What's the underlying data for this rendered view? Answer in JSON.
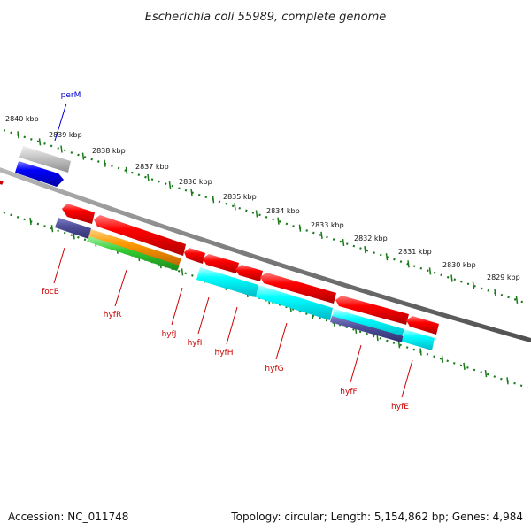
{
  "title": "Escherichia coli 55989, complete genome",
  "footer": {
    "accession": "Accession: NC_011748",
    "summary": "Topology: circular; Length: 5,154,862 bp; Genes: 4,984"
  },
  "scale_labels": [
    "2840 kbp",
    "2839 kbp",
    "2838 kbp",
    "2837 kbp",
    "2836 kbp",
    "2835 kbp",
    "2834 kbp",
    "2833 kbp",
    "2832 kbp",
    "2831 kbp",
    "2830 kbp",
    "2829 kbp"
  ],
  "colors": {
    "label_red": "#cc0000",
    "label_blue": "#0000cc",
    "backbone": "#808080",
    "tick": "#1a7a1a"
  },
  "genes": [
    {
      "name": "perM",
      "label_color": "#0000cc"
    },
    {
      "name": "focB",
      "label_color": "#cc0000"
    },
    {
      "name": "hyfR",
      "label_color": "#cc0000"
    },
    {
      "name": "hyfJ",
      "label_color": "#cc0000"
    },
    {
      "name": "hyfI",
      "label_color": "#cc0000"
    },
    {
      "name": "hyfH",
      "label_color": "#cc0000"
    },
    {
      "name": "hyfG",
      "label_color": "#cc0000"
    },
    {
      "name": "hyfF",
      "label_color": "#cc0000"
    },
    {
      "name": "hyfE",
      "label_color": "#cc0000"
    }
  ]
}
